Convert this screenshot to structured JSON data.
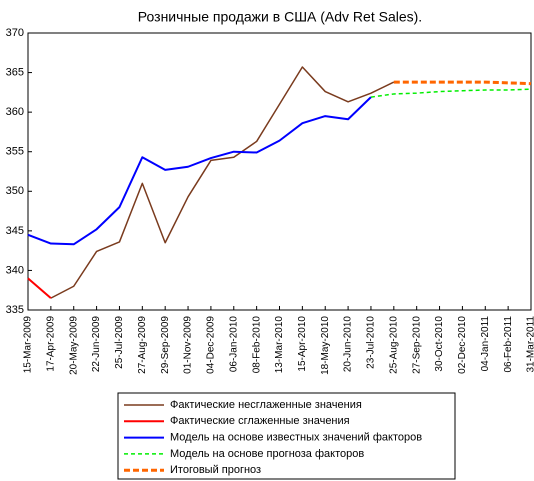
{
  "chart_data": {
    "type": "line",
    "title": "Розничные продажи в США (Adv Ret Sales).",
    "categories": [
      "15-Mar-2009",
      "17-Apr-2009",
      "20-May-2009",
      "22-Jun-2009",
      "25-Jul-2009",
      "27-Aug-2009",
      "29-Sep-2009",
      "01-Nov-2009",
      "04-Dec-2009",
      "06-Jan-2010",
      "08-Feb-2010",
      "13-Mar-2010",
      "15-Apr-2010",
      "18-May-2010",
      "20-Jun-2010",
      "23-Jul-2010",
      "25-Aug-2010",
      "27-Sep-2010",
      "30-Oct-2010",
      "02-Dec-2010",
      "04-Jan-2011",
      "06-Feb-2011",
      "31-Mar-2011"
    ],
    "series": [
      {
        "name": "Фактические несглаженные значения",
        "color": "#7a3b1e",
        "width": 1.5,
        "dashed": false,
        "values": [
          null,
          336.5,
          338,
          342.4,
          343.6,
          351,
          343.5,
          349.3,
          353.9,
          354.3,
          356.3,
          361,
          365.7,
          362.6,
          361.3,
          362.4,
          363.8,
          null,
          null,
          null,
          null,
          null,
          null
        ]
      },
      {
        "name": "Фактические сглаженные значения",
        "color": "#ff0000",
        "width": 2,
        "dashed": false,
        "values": [
          339,
          336.5,
          null,
          null,
          null,
          null,
          null,
          null,
          null,
          null,
          null,
          null,
          null,
          null,
          null,
          null,
          null,
          null,
          null,
          null,
          null,
          null,
          null
        ]
      },
      {
        "name": "Модель на основе известных значений факторов",
        "color": "#0000ff",
        "width": 2,
        "dashed": false,
        "values": [
          344.5,
          343.4,
          343.3,
          345.2,
          348,
          354.3,
          352.7,
          353.1,
          354.2,
          355,
          354.9,
          356.4,
          358.6,
          359.5,
          359.1,
          361.9,
          null,
          null,
          null,
          null,
          null,
          null,
          null
        ]
      },
      {
        "name": "Модель на основе прогноза факторов",
        "color": "#00ee00",
        "width": 1.5,
        "dashed": true,
        "values": [
          null,
          null,
          null,
          null,
          null,
          null,
          null,
          null,
          null,
          null,
          null,
          null,
          null,
          null,
          null,
          361.9,
          362.3,
          362.4,
          362.6,
          362.7,
          362.8,
          362.8,
          362.9
        ]
      },
      {
        "name": "Итоговый прогноз",
        "color": "#ff6600",
        "width": 3,
        "dashed": true,
        "values": [
          null,
          null,
          null,
          null,
          null,
          null,
          null,
          null,
          null,
          null,
          null,
          null,
          null,
          null,
          null,
          null,
          363.8,
          363.8,
          363.8,
          363.8,
          363.8,
          363.7,
          363.6
        ]
      }
    ],
    "ylim": [
      335,
      370
    ],
    "yticks": [
      335,
      340,
      345,
      350,
      355,
      360,
      365,
      370
    ],
    "grid": false
  }
}
